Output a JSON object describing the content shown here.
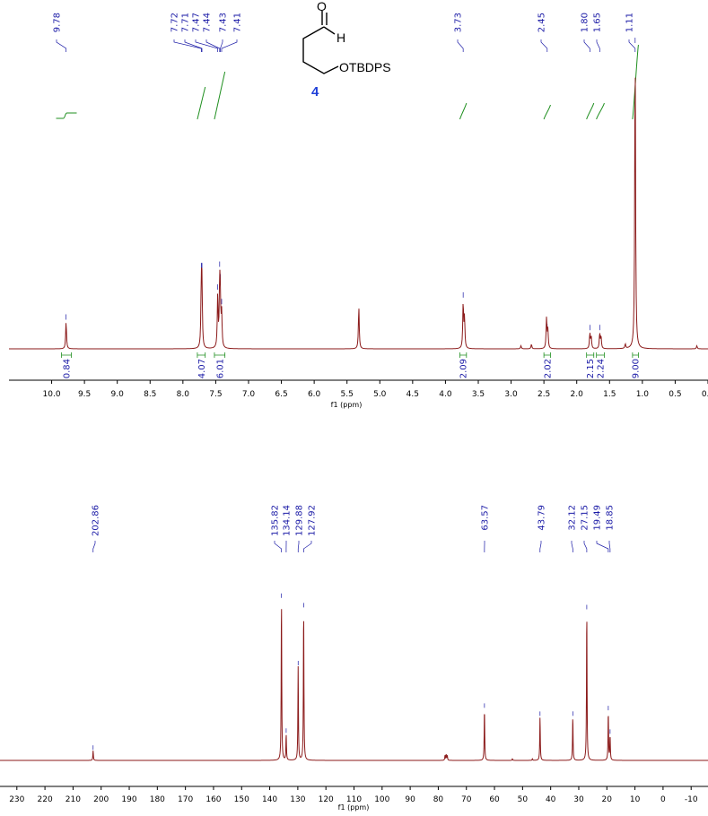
{
  "colors": {
    "spectrum": "#8b1a1a",
    "peak_labels": "#1a1aa6",
    "integral": "#1f8f1f",
    "compound_number": "#1f3fd8"
  },
  "structure": {
    "atom_o": "O",
    "atom_h": "H",
    "group": "OTBDPS",
    "compound_number": "4"
  },
  "chart_data": [
    {
      "type": "line",
      "name": "1H NMR",
      "xlabel": "f1 (ppm)",
      "xlim": [
        10.65,
        0.0
      ],
      "x_reversed": true,
      "x_ticks": [
        "10.0",
        "9.5",
        "9.0",
        "8.5",
        "8.0",
        "7.5",
        "7.0",
        "6.5",
        "6.0",
        "5.5",
        "5.0",
        "4.5",
        "4.0",
        "3.5",
        "3.0",
        "2.5",
        "2.0",
        "1.5",
        "1.0",
        "0.5",
        "0.0"
      ],
      "peak_labels": [
        {
          "x": 9.78,
          "text": "9.78"
        },
        {
          "x": 7.72,
          "text": "7.72"
        },
        {
          "x": 7.71,
          "text": "7.71"
        },
        {
          "x": 7.47,
          "text": "7.47"
        },
        {
          "x": 7.44,
          "text": "7.44"
        },
        {
          "x": 7.43,
          "text": "7.43"
        },
        {
          "x": 7.41,
          "text": "7.41"
        },
        {
          "x": 3.73,
          "text": "3.73"
        },
        {
          "x": 2.45,
          "text": "2.45"
        },
        {
          "x": 1.8,
          "text": "1.80"
        },
        {
          "x": 1.65,
          "text": "1.65"
        },
        {
          "x": 1.11,
          "text": "1.11"
        }
      ],
      "peaks": [
        {
          "x": 9.78,
          "y": 0.09
        },
        {
          "x": 7.72,
          "y": 0.19
        },
        {
          "x": 7.71,
          "y": 0.19
        },
        {
          "x": 7.47,
          "y": 0.17
        },
        {
          "x": 7.44,
          "y": 0.2
        },
        {
          "x": 7.43,
          "y": 0.13
        },
        {
          "x": 7.41,
          "y": 0.11
        },
        {
          "x": 5.32,
          "y": 0.14
        },
        {
          "x": 3.73,
          "y": 0.15
        },
        {
          "x": 3.71,
          "y": 0.1
        },
        {
          "x": 2.46,
          "y": 0.1
        },
        {
          "x": 2.44,
          "y": 0.06
        },
        {
          "x": 1.8,
          "y": 0.05
        },
        {
          "x": 1.78,
          "y": 0.04
        },
        {
          "x": 1.65,
          "y": 0.05
        },
        {
          "x": 1.63,
          "y": 0.04
        },
        {
          "x": 2.69,
          "y": 0.015
        },
        {
          "x": 2.85,
          "y": 0.01
        },
        {
          "x": 1.26,
          "y": 0.015
        },
        {
          "x": 1.11,
          "y": 1.0
        },
        {
          "x": 0.17,
          "y": 0.01
        }
      ],
      "integrals": [
        {
          "from": 9.85,
          "to": 9.7,
          "value": "0.84"
        },
        {
          "from": 7.78,
          "to": 7.66,
          "value": "4.07"
        },
        {
          "from": 7.52,
          "to": 7.36,
          "value": "6.01"
        },
        {
          "from": 3.78,
          "to": 3.68,
          "value": "2.09"
        },
        {
          "from": 2.5,
          "to": 2.4,
          "value": "2.02"
        },
        {
          "from": 1.85,
          "to": 1.74,
          "value": "2.15"
        },
        {
          "from": 1.7,
          "to": 1.58,
          "value": "2.24"
        },
        {
          "from": 1.15,
          "to": 1.06,
          "value": "9.00"
        }
      ]
    },
    {
      "type": "line",
      "name": "13C NMR",
      "xlabel": "f1 (ppm)",
      "xlim": [
        236,
        -16
      ],
      "x_reversed": true,
      "x_ticks": [
        "230",
        "220",
        "210",
        "200",
        "190",
        "180",
        "170",
        "160",
        "150",
        "140",
        "130",
        "120",
        "110",
        "100",
        "90",
        "80",
        "70",
        "60",
        "50",
        "40",
        "30",
        "20",
        "10",
        "0",
        "-10"
      ],
      "peak_labels": [
        {
          "x": 202.86,
          "text": "202.86"
        },
        {
          "x": 135.82,
          "text": "135.82"
        },
        {
          "x": 134.14,
          "text": "134.14"
        },
        {
          "x": 129.88,
          "text": "129.88"
        },
        {
          "x": 127.92,
          "text": "127.92"
        },
        {
          "x": 63.57,
          "text": "63.57"
        },
        {
          "x": 43.79,
          "text": "43.79"
        },
        {
          "x": 32.12,
          "text": "32.12"
        },
        {
          "x": 27.15,
          "text": "27.15"
        },
        {
          "x": 19.49,
          "text": "19.49"
        },
        {
          "x": 18.85,
          "text": "18.85"
        }
      ],
      "peaks": [
        {
          "x": 202.86,
          "y": 0.06
        },
        {
          "x": 135.82,
          "y": 1.0
        },
        {
          "x": 134.14,
          "y": 0.16
        },
        {
          "x": 129.88,
          "y": 0.58
        },
        {
          "x": 127.92,
          "y": 0.94
        },
        {
          "x": 77.6,
          "y": 0.03
        },
        {
          "x": 77.2,
          "y": 0.035
        },
        {
          "x": 76.8,
          "y": 0.03
        },
        {
          "x": 63.57,
          "y": 0.32
        },
        {
          "x": 43.79,
          "y": 0.27
        },
        {
          "x": 32.12,
          "y": 0.27
        },
        {
          "x": 27.15,
          "y": 0.93
        },
        {
          "x": 19.49,
          "y": 0.3
        },
        {
          "x": 18.85,
          "y": 0.15
        },
        {
          "x": 53.6,
          "y": 0.01
        },
        {
          "x": 46.5,
          "y": 0.01
        }
      ]
    }
  ]
}
